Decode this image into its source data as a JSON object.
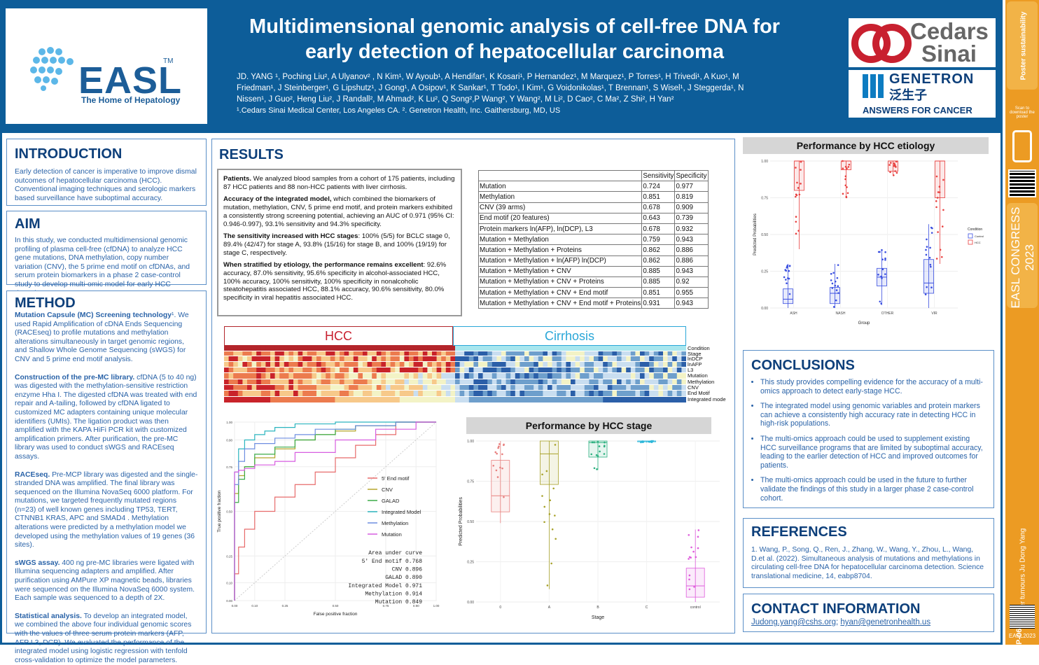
{
  "header": {
    "logo_text": "EASL",
    "logo_tm": "TM",
    "logo_tagline": "The Home of Hepatology",
    "title_line1": "Multidimensional genomic analysis of cell-free DNA for",
    "title_line2": "early detection of hepatocellular carcinoma",
    "authors": "JD. YANG ¹, Poching Liu², A Ulyanov² , N Kim¹, W Ayoub¹, A Hendifar¹, K Kosari¹, P Hernandez¹, M Marquez¹, P Torres¹, H Trivedi¹, A Kuo¹, M Friedman¹, J Steinberger¹, G Lipshutz¹, J Gong¹, A Osipov¹, K Sankar¹, T Todo¹,  I Kim¹, G Voidonikolas¹, T Brennan¹, S Wisel¹, J  Steggerda¹, N Nissen¹, J Guo², Heng Liu², J Randall², M Ahmad², K Lu², Q Song²,P Wang², Y Wang², M Li², D Cao², C Ma², Z Shi², H Yan²",
    "affiliations": "¹.Cedars Sinai Medical Center, Los Angeles CA. ². Genetron Health, Inc.  Gaithersburg, MD, US",
    "cedars_line1": "Cedars",
    "cedars_line2": "Sinai",
    "genetron_name": "GENETRON",
    "genetron_cn": "泛生子",
    "genetron_tag": "ANSWERS FOR CANCER"
  },
  "side": {
    "poster_badge": "Poster sustainability",
    "scan_text": "Scan to download the poster",
    "congress": "EASL CONGRESS 2023",
    "topic": "Liver tumours   Ju Dong Yang",
    "code": "TOP-065",
    "easl_year": "EASL2023"
  },
  "introduction": {
    "heading": "INTRODUCTION",
    "text": "Early detection of cancer is imperative to improve dismal outcomes of hepatocellular carcinoma (HCC). Conventional imaging techniques and serologic markers based surveillance have suboptimal accuracy."
  },
  "aim": {
    "heading": "AIM",
    "text": "In this study, we conducted multidimensional genomic profiling of plasma cell-free (cfDNA) to analyze HCC gene mutations, DNA methylation, copy number variation (CNV), the 5 prime end motif on cfDNAs, and serum protein biomarkers in a phase 2 case-control study to develop multi-omic model for early HCC detection."
  },
  "method": {
    "heading": "METHOD",
    "p1_bold": "Mutation Capsule (MC) Screening technology",
    "p1": "¹. We used  Rapid Amplification of cDNA Ends Sequencing (RACEseq)  to profile mutations and methylation alterations simultaneously in target genomic regions, and Shallow Whole Genome Sequencing (sWGS) for CNV and 5 prime end motif analysis.",
    "p2_bold": "Construction of the pre-MC library.",
    "p2": " cfDNA (5 to 40 ng) was digested with the methylation-sensitive restriction enzyme Hha I. The digested cfDNA was treated with end repair and A-tailing, followed by cfDNA ligated to customized MC adapters containing unique molecular identifiers (UMIs). The ligation product was then amplified with the KAPA HiFi PCR kit with customized amplification primers. After purification, the pre-MC library was used to conduct sWGS and RACEseq assays.",
    "p3_bold": "RACEseq.",
    "p3": " Pre-MCP library was digested and the single-stranded DNA was amplified. The final library was sequenced on the Illumina NovaSeq 6000 platform. For mutations, we targeted frequently mutated regions (n=23) of well known genes including TP53, TERT, CTNNB1 KRAS, APC and SMAD4 . Methylation alterations were predicted by a methylation model we developed using the methylation values of 19 genes (36 sites).",
    "p4_bold": "sWGS assay.",
    "p4": " 400 ng pre-MC libraries were ligated with Illumina sequencing adapters and amplified. After purification using AMPure XP magnetic beads, libraries were sequenced on the Illumina NovaSeq 6000 system. Each sample was sequenced to a depth of  2X.",
    "p5_bold": "Statistical analysis.",
    "p5": " To develop an integrated model, we combined the above four individual genomic scores with the values of three serum protein markers (AFP, AFP L3, DCP). We evaluated the performance of the integrated model using logistic regression with tenfold cross-validation to optimize the model parameters."
  },
  "results": {
    "heading": "RESULTS",
    "patients_bold": "Patients.",
    "patients": " We analyzed blood samples from a cohort of 175 patients, including 87 HCC patients and 88 non-HCC patients with liver cirrhosis.",
    "accuracy_bold": "Accuracy of the integrated model,",
    "accuracy": " which combined the biomarkers of mutation, methylation, CNV, 5 prime end motif, and protein markers exhibited a consistently strong screening potential, achieving an AUC of 0.971 (95% CI: 0.946-0.997), 93.1% sensitivity and 94.3% specificity.",
    "stage_bold": "The sensitivity increased with HCC stages",
    "stage": ": 100% (5/5) for BCLC stage 0, 89.4% (42/47) for stage A, 93.8% (15/16) for stage B, and 100% (19/19) for stage C, respectively.",
    "etiology_bold": "When stratified by etiology, the performance remains excellent",
    "etiology": ": 92.6% accuracy, 87.0% sensitivity, 95.6% specificity in alcohol-associated HCC, 100% accuracy, 100% sensitivity, 100% specificity in nonalcoholic steatohepatitis associated HCC, 88.1% accuracy, 90.6% sensitivity, 80.0% specificity in viral hepatitis associated HCC."
  },
  "performance_table": {
    "headers": [
      "",
      "Sensitivity",
      "Specificity"
    ],
    "rows": [
      [
        "Mutation",
        "0.724",
        "0.977"
      ],
      [
        "Methylation",
        "0.851",
        "0.819"
      ],
      [
        "CNV (39 arms)",
        "0.678",
        "0.909"
      ],
      [
        "End motif (20 features)",
        "0.643",
        "0.739"
      ],
      [
        "Protein markers ln(AFP), ln(DCP), L3",
        "0.678",
        "0.932"
      ],
      [
        "Mutation + Methylation",
        "0.759",
        "0.943"
      ],
      [
        "Mutation + Methylation + Proteins",
        "0.862",
        "0.886"
      ],
      [
        "Mutation + Methylation + ln(AFP) ln(DCP)",
        "0.862",
        "0.886"
      ],
      [
        "Mutation + Methylation + CNV",
        "0.885",
        "0.943"
      ],
      [
        "Mutation + Methylation + CNV + Proteins",
        "0.885",
        "0.92"
      ],
      [
        "Mutation + Methylation + CNV + End motif",
        "0.851",
        "0.955"
      ],
      [
        "Mutation + Methylation + CNV + End motif + Proteins",
        "0.931",
        "0.943"
      ]
    ]
  },
  "heatmap": {
    "hcc_label": "HCC",
    "cirrhosis_label": "Cirrhosis",
    "rows": [
      "Condition",
      "Stage",
      "lnDCP",
      "lnAFP",
      "L3",
      "Mutation",
      "Methylation",
      "CNV",
      "End Motif",
      "Integrated mode"
    ]
  },
  "roc": {
    "xlabel": "False positive fraction",
    "ylabel": "True positive fraction",
    "legend": [
      "5' End motif",
      "CNV",
      "GALAD",
      "Integrated Model",
      "Methylation",
      "Mutation"
    ],
    "auc_title": "Area under curve",
    "auc_lines": [
      "5' End motif 0.768",
      "CNV 0.896",
      "GALAD 0.890",
      "Integrated Model 0.971",
      "Methylation 0.914",
      "Mutation 0.849"
    ]
  },
  "stage_plot": {
    "title": "Performance by HCC stage",
    "xlabel": "Stage",
    "ylabel": "Predicted Probabilities",
    "categories": [
      "0",
      "A",
      "B",
      "C",
      "control"
    ]
  },
  "etiology_plot": {
    "title": "Performance by HCC etiology",
    "xlabel": "Group",
    "ylabel": "Predicted Probabilities",
    "categories": [
      "ASH",
      "NASH",
      "OTHER",
      "VIR"
    ],
    "legend_title": "Condition",
    "legend": [
      "Control",
      "HCC"
    ]
  },
  "conclusions": {
    "heading": "CONCLUSIONS",
    "items": [
      "This study provides compelling evidence for the accuracy of a multi-omics approach to detect early-stage HCC.",
      "The integrated model using genomic variables and protein markers can achieve a consistently high accuracy rate in detecting HCC in high-risk populations.",
      "The multi-omics approach could be used to supplement existing HCC surveillance programs that are limited by suboptimal accuracy, leading to the earlier detection of HCC and improved outcomes for patients.",
      "The multi-omics approach could be used in the future to further validate the findings of this study in a larger phase 2 case-control cohort."
    ]
  },
  "references": {
    "heading": "REFERENCES",
    "text": "1. Wang, P., Song, Q., Ren, J., Zhang, W., Wang, Y., Zhou, L., Wang, D.et al. (2022). Simultaneous analysis of mutations and methylations in circulating cell-free DNA for hepatocellular carcinoma detection. Science translational medicine, 14, eabp8704."
  },
  "contact": {
    "heading": "CONTACT INFORMATION",
    "email1": "Judong.yang@cshs.org",
    "sep": "; ",
    "email2": "hyan@genetronhealth.us"
  },
  "chart_data": [
    {
      "type": "line",
      "title": "",
      "xlabel": "False positive fraction",
      "ylabel": "True positive fraction",
      "xlim": [
        0,
        1
      ],
      "ylim": [
        0,
        1
      ],
      "x_ticks": [
        "0.00",
        "0.10",
        "0.25",
        "0.50",
        "0.75",
        "0.90",
        "1.00"
      ],
      "y_ticks": [
        "0.00",
        "0.10",
        "0.25",
        "0.50",
        "0.75",
        "0.90",
        "1.00"
      ],
      "series": [
        {
          "name": "5' End motif",
          "color": "#e76b6b",
          "x": [
            0,
            0.02,
            0.05,
            0.1,
            0.2,
            0.3,
            0.4,
            0.5,
            0.6,
            0.7,
            0.8,
            1.0
          ],
          "y": [
            0,
            0.15,
            0.3,
            0.4,
            0.5,
            0.58,
            0.65,
            0.72,
            0.8,
            0.87,
            0.93,
            1.0
          ]
        },
        {
          "name": "CNV",
          "color": "#b5a52a",
          "x": [
            0,
            0.02,
            0.05,
            0.1,
            0.2,
            0.3,
            0.4,
            0.5,
            0.6,
            0.8,
            1.0
          ],
          "y": [
            0,
            0.6,
            0.7,
            0.75,
            0.8,
            0.85,
            0.9,
            0.93,
            0.95,
            0.98,
            1.0
          ]
        },
        {
          "name": "GALAD",
          "color": "#3bab47",
          "x": [
            0,
            0.02,
            0.05,
            0.1,
            0.2,
            0.3,
            0.4,
            0.5,
            0.6,
            0.8,
            1.0
          ],
          "y": [
            0,
            0.55,
            0.68,
            0.75,
            0.82,
            0.86,
            0.9,
            0.93,
            0.96,
            0.98,
            1.0
          ]
        },
        {
          "name": "Integrated Model",
          "color": "#2bb5bf",
          "x": [
            0,
            0.02,
            0.05,
            0.1,
            0.15,
            0.2,
            0.3,
            0.5,
            0.7,
            1.0
          ],
          "y": [
            0,
            0.72,
            0.85,
            0.9,
            0.93,
            0.95,
            0.97,
            0.99,
            1.0,
            1.0
          ]
        },
        {
          "name": "Methylation",
          "color": "#6d8ee0",
          "x": [
            0,
            0.02,
            0.05,
            0.1,
            0.2,
            0.3,
            0.4,
            0.6,
            0.8,
            1.0
          ],
          "y": [
            0,
            0.65,
            0.78,
            0.85,
            0.88,
            0.91,
            0.93,
            0.96,
            0.98,
            1.0
          ]
        },
        {
          "name": "Mutation",
          "color": "#d75de0",
          "x": [
            0,
            0.02,
            0.05,
            0.1,
            0.2,
            0.3,
            0.5,
            0.7,
            0.9,
            1.0
          ],
          "y": [
            0,
            0.72,
            0.73,
            0.74,
            0.76,
            0.78,
            0.83,
            0.9,
            0.96,
            1.0
          ]
        }
      ]
    },
    {
      "type": "box",
      "title": "Performance by HCC stage",
      "xlabel": "Stage",
      "ylabel": "Predicted Probabilities",
      "categories": [
        "0",
        "A",
        "B",
        "C",
        "control"
      ],
      "ylim": [
        0,
        1
      ],
      "y_ticks": [
        "0.00",
        "0.25",
        "0.50",
        "0.75",
        "1.00"
      ],
      "colors": [
        "#e8807f",
        "#a8a22a",
        "#2bb07f",
        "#2ab6d9",
        "#df5cdc"
      ],
      "boxes": [
        {
          "q1": 0.56,
          "median": 0.66,
          "q3": 0.88,
          "min": 0.49,
          "max": 1.0
        },
        {
          "q1": 0.73,
          "median": 0.92,
          "q3": 1.0,
          "min": 0.08,
          "max": 1.0
        },
        {
          "q1": 0.9,
          "median": 0.99,
          "q3": 1.0,
          "min": 0.82,
          "max": 1.0
        },
        {
          "q1": 0.995,
          "median": 1.0,
          "q3": 1.0,
          "min": 0.99,
          "max": 1.0
        },
        {
          "q1": 0.03,
          "median": 0.1,
          "q3": 0.21,
          "min": 0.0,
          "max": 0.45
        }
      ]
    },
    {
      "type": "box",
      "title": "Performance by HCC etiology",
      "xlabel": "Group",
      "ylabel": "Predicted Probabilities",
      "categories": [
        "ASH",
        "NASH",
        "OTHER",
        "VIR"
      ],
      "legend": [
        "Control",
        "HCC"
      ],
      "legend_position": "right",
      "ylim": [
        0,
        1
      ],
      "y_ticks": [
        "0.00",
        "0.25",
        "0.50",
        "0.75",
        "1.00"
      ],
      "series": [
        {
          "name": "Control",
          "color": "#3a4fe0",
          "boxes": [
            {
              "q1": 0.03,
              "median": 0.06,
              "q3": 0.13,
              "min": 0.0,
              "max": 0.3
            },
            {
              "q1": 0.03,
              "median": 0.1,
              "q3": 0.14,
              "min": 0.0,
              "max": 0.3
            },
            {
              "q1": 0.15,
              "median": 0.21,
              "q3": 0.27,
              "min": 0.02,
              "max": 0.4
            },
            {
              "q1": 0.1,
              "median": 0.17,
              "q3": 0.33,
              "min": 0.0,
              "max": 0.57
            }
          ]
        },
        {
          "name": "HCC",
          "color": "#e8403f",
          "boxes": [
            {
              "q1": 0.8,
              "median": 1.0,
              "q3": 1.0,
              "min": 0.4,
              "max": 1.0
            },
            {
              "q1": 0.94,
              "median": 1.0,
              "q3": 1.0,
              "min": 0.75,
              "max": 1.0
            },
            {
              "q1": 0.93,
              "median": 1.0,
              "q3": 1.0,
              "min": 0.9,
              "max": 1.0
            },
            {
              "q1": 0.75,
              "median": 1.0,
              "q3": 1.0,
              "min": 0.3,
              "max": 1.0
            }
          ]
        }
      ]
    }
  ]
}
